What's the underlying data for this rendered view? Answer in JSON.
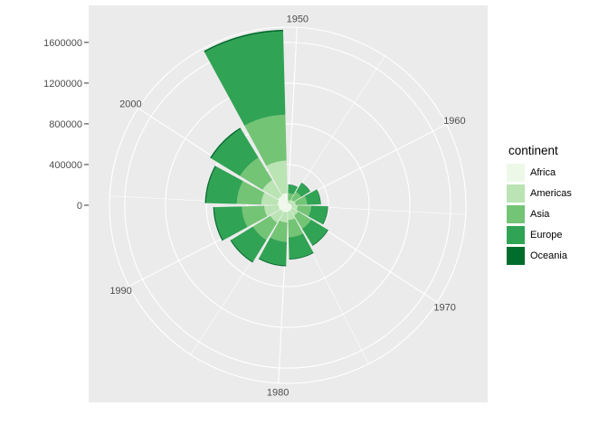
{
  "chart_data": {
    "type": "polar-stacked-bar",
    "title": "",
    "xlabel": "",
    "ylabel": "",
    "angle_axis_labels": [
      "1950",
      "1960",
      "1970",
      "1980",
      "1990",
      "2000"
    ],
    "radial_axis_ticks": [
      0,
      400000,
      800000,
      1200000,
      1600000
    ],
    "radial_axis_tick_labels": [
      "0",
      "400000",
      "800000",
      "1200000",
      "1600000"
    ],
    "ylim": [
      0,
      1750000
    ],
    "x": [
      1952,
      1957,
      1962,
      1967,
      1972,
      1977,
      1982,
      1987,
      1992,
      1997,
      2002,
      2007
    ],
    "xlim": [
      1949.5,
      2009.5
    ],
    "legend_title": "continent",
    "legend_position": "right",
    "series": [
      {
        "name": "Africa",
        "color": "#edf8e9",
        "values": [
          20000,
          25000,
          30000,
          40000,
          50000,
          60000,
          70000,
          80000,
          90000,
          100000,
          110000,
          120000
        ]
      },
      {
        "name": "Americas",
        "color": "#bae4b3",
        "values": [
          30000,
          40000,
          50000,
          60000,
          70000,
          85000,
          100000,
          120000,
          140000,
          160000,
          180000,
          320000
        ]
      },
      {
        "name": "Asia",
        "color": "#74c476",
        "values": [
          70000,
          90000,
          110000,
          130000,
          150000,
          170000,
          190000,
          200000,
          220000,
          240000,
          260000,
          450000
        ]
      },
      {
        "name": "Europe",
        "color": "#31a354",
        "values": [
          80000,
          100000,
          130000,
          160000,
          190000,
          210000,
          230000,
          250000,
          270000,
          300000,
          330000,
          820000
        ]
      },
      {
        "name": "Oceania",
        "color": "#006d2c",
        "values": [
          4000,
          5000,
          6000,
          7000,
          8000,
          9000,
          10000,
          11000,
          12000,
          13000,
          14000,
          15000
        ]
      }
    ],
    "grid": true,
    "background": "#ebebeb"
  }
}
